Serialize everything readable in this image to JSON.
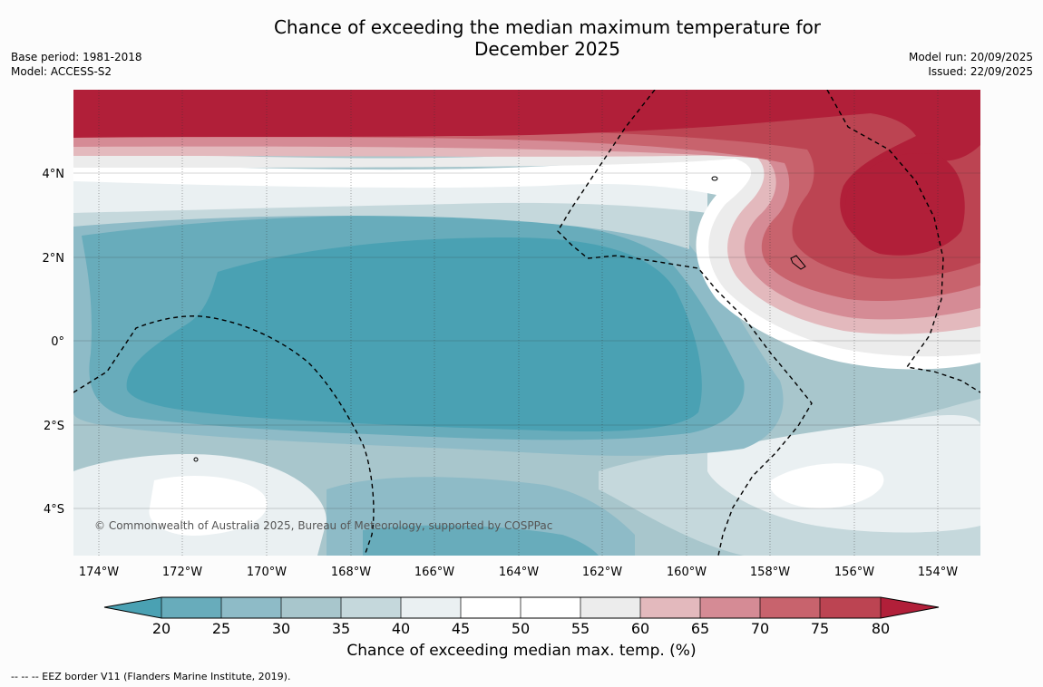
{
  "title": {
    "line1": "Chance of exceeding the median maximum temperature for",
    "line2": "December 2025"
  },
  "meta": {
    "base_period": "Base period: 1981-2018",
    "model": "Model: ACCESS-S2",
    "model_run": "Model run: 20/09/2025",
    "issued": "Issued: 22/09/2025"
  },
  "map": {
    "lat_labels": [
      "4°N",
      "2°N",
      "0°",
      "2°S",
      "4°S"
    ],
    "lon_labels": [
      "174°W",
      "172°W",
      "170°W",
      "168°W",
      "166°W",
      "164°W",
      "162°W",
      "160°W",
      "158°W",
      "156°W",
      "154°W"
    ],
    "copyright": "© Commonwealth of Australia 2025, Bureau of Meteorology, supported by COSPPac"
  },
  "colorbar": {
    "ticks": [
      "20",
      "25",
      "30",
      "35",
      "40",
      "45",
      "50",
      "55",
      "60",
      "65",
      "70",
      "75",
      "80"
    ],
    "label": "Chance of exceeding median max. temp. (%)",
    "colors": {
      "below20": "#4aa1b3",
      "c20_25": "#68acbb",
      "c25_30": "#8ebbc7",
      "c30_35": "#a8c6cc",
      "c35_40": "#c5d8dc",
      "c40_45": "#eaf0f2",
      "c45_50": "#ffffff",
      "c50_55": "#ffffff",
      "c55_60": "#ececec",
      "c60_65": "#e3b9bd",
      "c65_70": "#d58b95",
      "c70_75": "#c8636d",
      "c75_80": "#bc4452",
      "above80": "#b11f39"
    }
  },
  "footer": "--  --  -- EEZ border V11 (Flanders Marine Institute, 2019)."
}
